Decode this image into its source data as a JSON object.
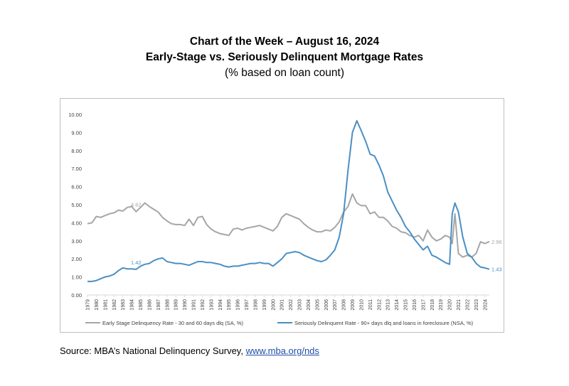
{
  "header": {
    "title_line1": "Chart of the Week – August 16, 2024",
    "title_line2": "Early-Stage vs. Seriously Delinquent Mortgage Rates",
    "subtitle": "(% based on loan count)"
  },
  "source": {
    "prefix": "Source: MBA’s National Delinquency Survey, ",
    "link_text": "www.mba.org/nds"
  },
  "colors": {
    "early": "#a6a6a6",
    "serious": "#4a8fc4",
    "grid": "#d9d9d9",
    "axis_text": "#404040"
  },
  "chart_data": {
    "type": "line",
    "title": "Early-Stage vs. Seriously Delinquent Mortgage Rates",
    "xlabel": "",
    "ylabel": "",
    "ylim": [
      0,
      10
    ],
    "xlim": [
      1979,
      2024.5
    ],
    "grid": false,
    "legend_position": "bottom",
    "y_ticks": [
      "0.00",
      "1.00",
      "2.00",
      "3.00",
      "4.00",
      "5.00",
      "6.00",
      "7.00",
      "8.00",
      "9.00",
      "10.00"
    ],
    "x_ticks": [
      "1979",
      "1980",
      "1981",
      "1982",
      "1983",
      "1984",
      "1985",
      "1986",
      "1987",
      "1988",
      "1989",
      "1990",
      "1991",
      "1992",
      "1993",
      "1994",
      "1995",
      "1996",
      "1997",
      "1998",
      "1999",
      "2000",
      "2001",
      "2002",
      "2003",
      "2004",
      "2005",
      "2006",
      "2007",
      "2008",
      "2009",
      "2010",
      "2011",
      "2012",
      "2013",
      "2014",
      "2015",
      "2016",
      "2017",
      "2018",
      "2019",
      "2020",
      "2021",
      "2022",
      "2023",
      "2024"
    ],
    "series": [
      {
        "name": "Early Stage Delinquency Rate - 30 and 60 days dlq (SA, %)",
        "x": [
          1979,
          1979.5,
          1980,
          1980.5,
          1981,
          1981.5,
          1982,
          1982.5,
          1983,
          1983.5,
          1984,
          1984.5,
          1985,
          1985.5,
          1986,
          1986.5,
          1987,
          1987.5,
          1988,
          1988.5,
          1989,
          1989.5,
          1990,
          1990.5,
          1991,
          1991.5,
          1992,
          1992.5,
          1993,
          1993.5,
          1994,
          1994.5,
          1995,
          1995.5,
          1996,
          1996.5,
          1997,
          1997.5,
          1998,
          1998.5,
          1999,
          1999.5,
          2000,
          2000.5,
          2001,
          2001.5,
          2002,
          2002.5,
          2003,
          2003.5,
          2004,
          2004.5,
          2005,
          2005.5,
          2006,
          2006.5,
          2007,
          2007.5,
          2008,
          2008.5,
          2009,
          2009.5,
          2010,
          2010.5,
          2011,
          2011.5,
          2012,
          2012.5,
          2013,
          2013.5,
          2014,
          2014.5,
          2015,
          2015.5,
          2016,
          2016.5,
          2017,
          2017.5,
          2018,
          2018.5,
          2019,
          2019.5,
          2020,
          2020.3,
          2020.6,
          2021,
          2021.5,
          2022,
          2022.5,
          2023,
          2023.5,
          2024,
          2024.5
        ],
        "values": [
          3.95,
          4.0,
          4.35,
          4.3,
          4.4,
          4.5,
          4.55,
          4.7,
          4.65,
          4.85,
          4.9,
          4.62,
          4.85,
          5.1,
          4.9,
          4.75,
          4.6,
          4.3,
          4.1,
          3.95,
          3.9,
          3.9,
          3.85,
          4.2,
          3.85,
          4.3,
          4.35,
          3.9,
          3.65,
          3.5,
          3.4,
          3.35,
          3.3,
          3.65,
          3.7,
          3.6,
          3.7,
          3.75,
          3.8,
          3.85,
          3.75,
          3.65,
          3.55,
          3.8,
          4.3,
          4.5,
          4.4,
          4.3,
          4.2,
          3.95,
          3.75,
          3.6,
          3.5,
          3.5,
          3.6,
          3.55,
          3.75,
          4.05,
          4.6,
          4.9,
          5.6,
          5.1,
          4.95,
          4.95,
          4.5,
          4.6,
          4.3,
          4.3,
          4.1,
          3.8,
          3.7,
          3.5,
          3.45,
          3.3,
          3.2,
          3.3,
          3.0,
          3.6,
          3.2,
          3.0,
          3.1,
          3.3,
          3.2,
          2.85,
          4.5,
          2.3,
          2.1,
          2.2,
          2.1,
          2.3,
          2.95,
          2.85,
          2.96
        ]
      },
      {
        "name": "Seriously Delinquent Rate - 90+ days dlq and loans in foreclosure (NSA, %)",
        "x": [
          1979,
          1979.5,
          1980,
          1980.5,
          1981,
          1981.5,
          1982,
          1982.5,
          1983,
          1983.5,
          1984,
          1984.5,
          1985,
          1985.5,
          1986,
          1986.5,
          1987,
          1987.5,
          1988,
          1988.5,
          1989,
          1989.5,
          1990,
          1990.5,
          1991,
          1991.5,
          1992,
          1992.5,
          1993,
          1993.5,
          1994,
          1994.5,
          1995,
          1995.5,
          1996,
          1996.5,
          1997,
          1997.5,
          1998,
          1998.5,
          1999,
          1999.5,
          2000,
          2000.5,
          2001,
          2001.5,
          2002,
          2002.5,
          2003,
          2003.5,
          2004,
          2004.5,
          2005,
          2005.5,
          2006,
          2006.5,
          2007,
          2007.5,
          2008,
          2008.5,
          2009,
          2009.5,
          2010,
          2010.5,
          2011,
          2011.5,
          2012,
          2012.5,
          2013,
          2013.5,
          2014,
          2014.5,
          2015,
          2015.5,
          2016,
          2016.5,
          2017,
          2017.5,
          2018,
          2018.5,
          2019,
          2019.5,
          2020,
          2020.3,
          2020.6,
          2021,
          2021.5,
          2022,
          2022.5,
          2023,
          2023.5,
          2024,
          2024.5
        ],
        "values": [
          0.75,
          0.75,
          0.8,
          0.9,
          1.0,
          1.05,
          1.15,
          1.35,
          1.5,
          1.45,
          1.45,
          1.42,
          1.6,
          1.7,
          1.75,
          1.9,
          2.0,
          2.05,
          1.85,
          1.8,
          1.75,
          1.75,
          1.7,
          1.65,
          1.75,
          1.85,
          1.85,
          1.8,
          1.8,
          1.75,
          1.7,
          1.6,
          1.55,
          1.6,
          1.6,
          1.65,
          1.7,
          1.75,
          1.75,
          1.8,
          1.75,
          1.75,
          1.6,
          1.8,
          2.0,
          2.3,
          2.35,
          2.4,
          2.35,
          2.2,
          2.1,
          2.0,
          1.9,
          1.85,
          1.95,
          2.2,
          2.5,
          3.2,
          4.5,
          6.9,
          9.0,
          9.65,
          9.1,
          8.5,
          7.8,
          7.7,
          7.2,
          6.6,
          5.7,
          5.2,
          4.7,
          4.3,
          3.8,
          3.5,
          3.1,
          2.8,
          2.5,
          2.7,
          2.2,
          2.1,
          1.95,
          1.8,
          1.7,
          4.5,
          5.1,
          4.6,
          3.2,
          2.3,
          2.1,
          1.75,
          1.55,
          1.5,
          1.43
        ]
      }
    ],
    "annotations": [
      {
        "text": "4.62",
        "x": 1984.5,
        "y": 4.62,
        "series": 0
      },
      {
        "text": "1.42",
        "x": 1984.5,
        "y": 1.42,
        "series": 1
      },
      {
        "text": "2.96",
        "x": 2024.5,
        "y": 2.96,
        "series": 0
      },
      {
        "text": "1.43",
        "x": 2024.5,
        "y": 1.43,
        "series": 1
      }
    ]
  }
}
